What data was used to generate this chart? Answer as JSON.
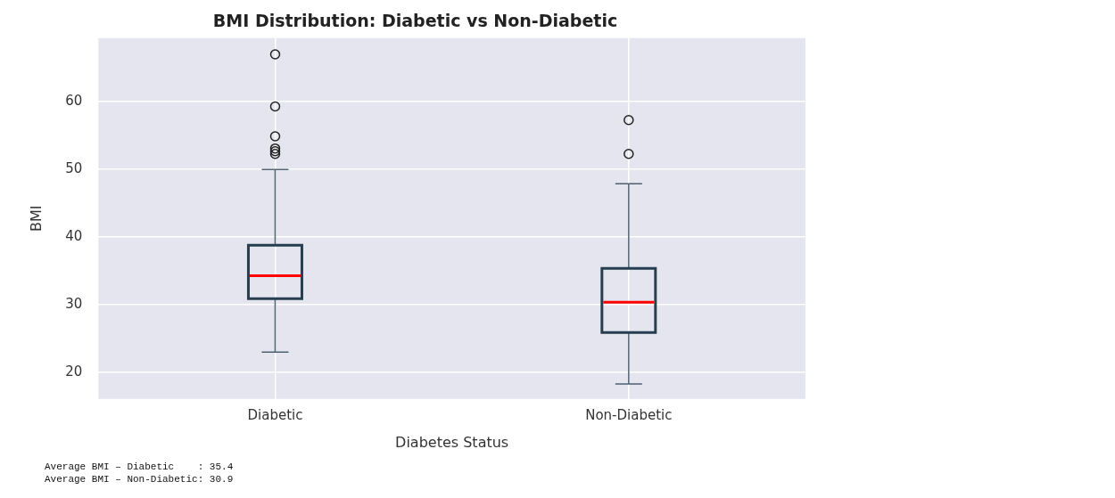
{
  "chart_data": {
    "type": "box",
    "title": "BMI Distribution: Diabetic vs Non-Diabetic",
    "xlabel": "Diabetes Status",
    "ylabel": "BMI",
    "categories": [
      "Diabetic",
      "Non-Diabetic"
    ],
    "series": [
      {
        "color": "#263f50",
        "boxes": [
          {
            "low": 23.0,
            "q1": 30.9,
            "median": 34.3,
            "q3": 38.8,
            "high": 50.0,
            "outliers": [
              67.0,
              59.3,
              54.9,
              53.1,
              52.7,
              52.3
            ]
          },
          {
            "low": 18.3,
            "q1": 25.9,
            "median": 30.4,
            "q3": 35.4,
            "high": 47.9,
            "outliers": [
              57.3,
              52.3
            ]
          }
        ]
      }
    ],
    "ylim": [
      16.1,
      69.4
    ],
    "yticks": [
      20,
      30,
      40,
      50,
      60
    ],
    "grid": true,
    "annotations": [
      "Average BMI – Diabetic    : 35.4",
      "Average BMI – Non-Diabetic: 30.9"
    ]
  }
}
